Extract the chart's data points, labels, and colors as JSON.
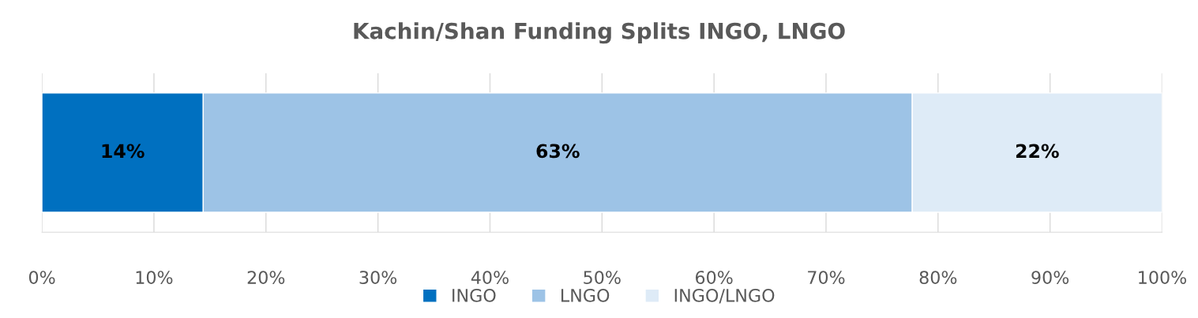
{
  "chart_data": {
    "type": "bar",
    "orientation": "horizontal",
    "stacked": true,
    "title": "Kachin/Shan Funding Splits INGO, LNGO",
    "categories": [
      null
    ],
    "series": [
      {
        "name": "INGO",
        "color": "#0070c0",
        "values": [
          14.4
        ],
        "value_labels": [
          "14%"
        ]
      },
      {
        "name": "LNGO",
        "color": "#9dc3e6",
        "values": [
          63.3
        ],
        "value_labels": [
          "63%"
        ]
      },
      {
        "name": "INGO/LNGO",
        "color": "#deebf7",
        "values": [
          22.3
        ],
        "value_labels": [
          "22%"
        ]
      }
    ],
    "xlim": [
      0,
      100
    ],
    "xticks": [
      {
        "value": 0,
        "label": "0%"
      },
      {
        "value": 10,
        "label": "10%"
      },
      {
        "value": 20,
        "label": "20%"
      },
      {
        "value": 30,
        "label": "30%"
      },
      {
        "value": 40,
        "label": "40%"
      },
      {
        "value": 50,
        "label": "50%"
      },
      {
        "value": 60,
        "label": "60%"
      },
      {
        "value": 70,
        "label": "70%"
      },
      {
        "value": 80,
        "label": "80%"
      },
      {
        "value": 90,
        "label": "90%"
      },
      {
        "value": 100,
        "label": "100%"
      }
    ],
    "grid": "x",
    "legend": "bottom",
    "tick_labels": "x"
  }
}
